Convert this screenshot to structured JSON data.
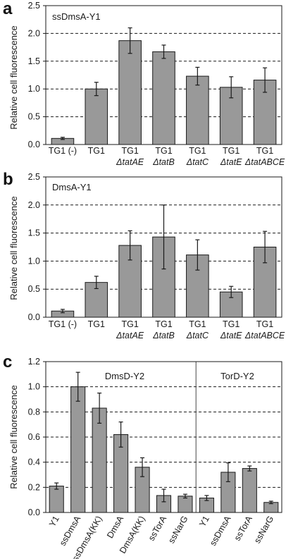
{
  "chart_data": [
    {
      "panel_label": "a",
      "type": "bar",
      "title": "ssDmsA-Y1",
      "ylabel": "Relative cell fluorescence",
      "ylim": [
        0,
        2.5
      ],
      "yticks": [
        "0.0",
        "0.5",
        "1.0",
        "1.5",
        "2.0",
        "2.5"
      ],
      "grid": "dashed horizontal",
      "categories": [
        {
          "main": "TG1 (-)",
          "sub": ""
        },
        {
          "main": "TG1",
          "sub": ""
        },
        {
          "main": "TG1",
          "sub": "ΔtatAE"
        },
        {
          "main": "TG1",
          "sub": "ΔtatB"
        },
        {
          "main": "TG1",
          "sub": "ΔtatC"
        },
        {
          "main": "TG1",
          "sub": "ΔtatE"
        },
        {
          "main": "TG1",
          "sub": "ΔtatABCE"
        }
      ],
      "values": [
        0.11,
        1.0,
        1.87,
        1.67,
        1.23,
        1.03,
        1.16
      ],
      "errors": [
        0.02,
        0.12,
        0.23,
        0.12,
        0.16,
        0.19,
        0.22
      ]
    },
    {
      "panel_label": "b",
      "type": "bar",
      "title": "DmsA-Y1",
      "ylabel": "Relative cell fluorescence",
      "ylim": [
        0,
        2.5
      ],
      "yticks": [
        "0.0",
        "0.5",
        "1.0",
        "1.5",
        "2.0",
        "2.5"
      ],
      "grid": "dashed horizontal",
      "categories": [
        {
          "main": "TG1 (-)",
          "sub": ""
        },
        {
          "main": "TG1",
          "sub": ""
        },
        {
          "main": "TG1",
          "sub": "ΔtatAE"
        },
        {
          "main": "TG1",
          "sub": "ΔtatB"
        },
        {
          "main": "TG1",
          "sub": "ΔtatC"
        },
        {
          "main": "TG1",
          "sub": "ΔtatE"
        },
        {
          "main": "TG1",
          "sub": "ΔtatABCE"
        }
      ],
      "values": [
        0.11,
        0.62,
        1.28,
        1.43,
        1.11,
        0.45,
        1.25
      ],
      "errors": [
        0.03,
        0.11,
        0.26,
        0.57,
        0.27,
        0.1,
        0.28
      ]
    },
    {
      "panel_label": "c",
      "type": "bar",
      "ylabel": "Relative cell fluorescence",
      "ylim": [
        0,
        1.2
      ],
      "yticks": [
        "0.0",
        "0.2",
        "0.4",
        "0.6",
        "0.8",
        "1.0",
        "1.2"
      ],
      "grid": "dashed horizontal",
      "groups": [
        {
          "title": "DmsD-Y2",
          "count": 7
        },
        {
          "title": "TorD-Y2",
          "count": 4
        }
      ],
      "categories": [
        "Y1",
        "ssDmsA",
        "ssDmsA(KK)",
        "DmsA",
        "DmsA(KK)",
        "ssTorA",
        "ssNarG",
        "Y1",
        "ssDmsA",
        "ssTorA",
        "ssNarG"
      ],
      "values": [
        0.21,
        1.0,
        0.83,
        0.62,
        0.36,
        0.135,
        0.13,
        0.115,
        0.32,
        0.35,
        0.08
      ],
      "errors": [
        0.025,
        0.115,
        0.12,
        0.1,
        0.075,
        0.05,
        0.015,
        0.02,
        0.075,
        0.02,
        0.01
      ]
    }
  ]
}
